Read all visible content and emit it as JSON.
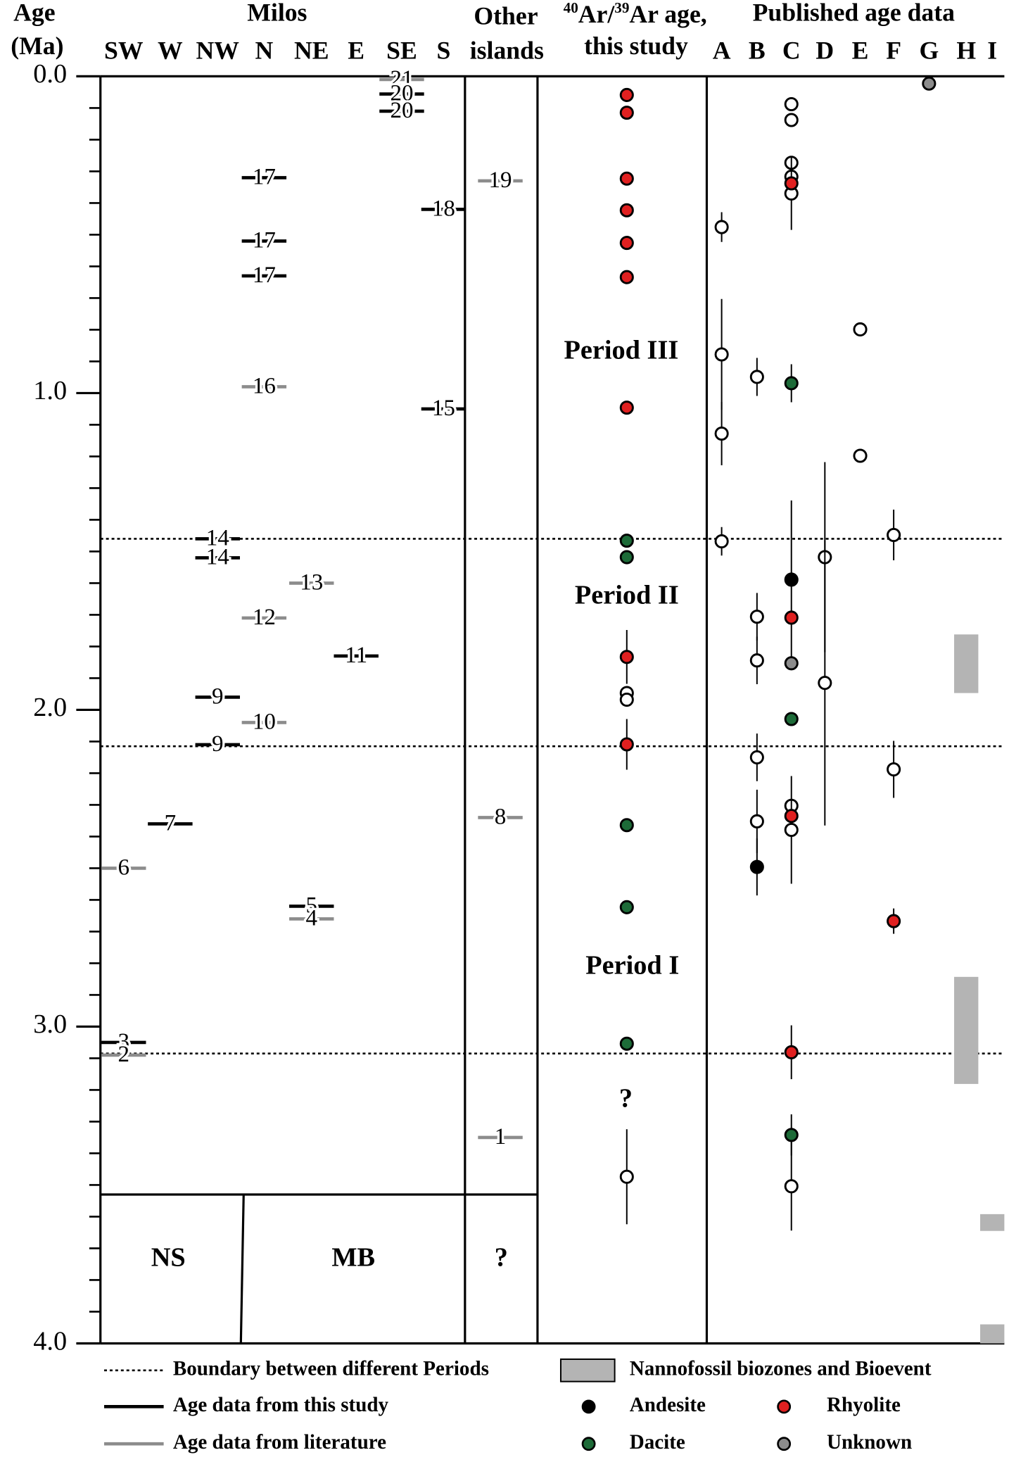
{
  "chart_data": {
    "type": "age-column-chart",
    "ylabel": [
      "Age",
      "(Ma)"
    ],
    "ylim": [
      0,
      4.0
    ],
    "yticks": [
      {
        "value": 0,
        "label": "0.0"
      },
      {
        "value": 1,
        "label": "1.0"
      },
      {
        "value": 2,
        "label": "2.0"
      },
      {
        "value": 3,
        "label": "3.0"
      },
      {
        "value": 4,
        "label": "4.0"
      }
    ],
    "minor_yticks": [
      0.1,
      0.2,
      0.3,
      0.4,
      0.5,
      0.6,
      0.7,
      0.8,
      0.9,
      1.1,
      1.2,
      1.3,
      1.4,
      1.5,
      1.6,
      1.7,
      1.8,
      1.9,
      2.1,
      2.2,
      2.3,
      2.4,
      2.5,
      2.6,
      2.7,
      2.8,
      2.9,
      3.1,
      3.2,
      3.3,
      3.4,
      3.5,
      3.6,
      3.7,
      3.8,
      3.9
    ],
    "milos_title": "Milos",
    "milos_columns": [
      "SW",
      "W",
      "NW",
      "N",
      "NE",
      "E",
      "SE",
      "S"
    ],
    "other_islands_title": [
      "Other",
      "islands"
    ],
    "study_title": {
      "sup1": "40",
      "text1": "Ar/",
      "sup2": "39",
      "text2": "Ar age,",
      "line2": "this study"
    },
    "published_title": "Published age data",
    "published_columns": [
      "A",
      "B",
      "C",
      "D",
      "E",
      "F",
      "G",
      "H",
      "I"
    ],
    "milos_bars": [
      {
        "column": "SE",
        "age": 0.01,
        "label": "21",
        "color": "#8c8c8c"
      },
      {
        "column": "SE",
        "age": 0.056,
        "label": "20",
        "color": "#000000"
      },
      {
        "column": "SE",
        "age": 0.11,
        "label": "20",
        "color": "#000000"
      },
      {
        "column": "N",
        "age": 0.32,
        "label": "17",
        "color": "#000000"
      },
      {
        "column": "S",
        "age": 0.42,
        "label": "18",
        "color": "#000000"
      },
      {
        "column": "N",
        "age": 0.52,
        "label": "17",
        "color": "#000000"
      },
      {
        "column": "N",
        "age": 0.63,
        "label": "17",
        "color": "#000000"
      },
      {
        "column": "N",
        "age": 0.98,
        "label": "16",
        "color": "#8c8c8c"
      },
      {
        "column": "S",
        "age": 1.05,
        "label": "15",
        "color": "#000000"
      },
      {
        "column": "NW",
        "age": 1.46,
        "label": "14",
        "color": "#000000"
      },
      {
        "column": "NW",
        "age": 1.52,
        "label": "14",
        "color": "#000000"
      },
      {
        "column": "NE",
        "age": 1.6,
        "label": "13",
        "color": "#8c8c8c"
      },
      {
        "column": "N",
        "age": 1.71,
        "label": "12",
        "color": "#8c8c8c"
      },
      {
        "column": "E",
        "age": 1.83,
        "label": "11",
        "color": "#000000"
      },
      {
        "column": "NW",
        "age": 1.96,
        "label": "9",
        "color": "#000000"
      },
      {
        "column": "N",
        "age": 2.04,
        "label": "10",
        "color": "#8c8c8c"
      },
      {
        "column": "NW",
        "age": 2.11,
        "label": "9",
        "color": "#000000"
      },
      {
        "column": "W",
        "age": 2.36,
        "label": "7",
        "color": "#000000"
      },
      {
        "column": "SW",
        "age": 2.5,
        "label": "6",
        "color": "#8c8c8c"
      },
      {
        "column": "NE",
        "age": 2.62,
        "label": "5",
        "color": "#000000"
      },
      {
        "column": "NE",
        "age": 2.66,
        "label": "4",
        "color": "#8c8c8c"
      },
      {
        "column": "SW",
        "age": 3.05,
        "label": "3",
        "color": "#000000"
      },
      {
        "column": "SW",
        "age": 3.09,
        "label": "2",
        "color": "#8c8c8c"
      }
    ],
    "other_islands_bars": [
      {
        "age": 0.33,
        "label": "19",
        "color": "#8c8c8c"
      },
      {
        "age": 2.34,
        "label": "8",
        "color": "#8c8c8c"
      },
      {
        "age": 3.35,
        "label": "1",
        "color": "#8c8c8c"
      }
    ],
    "study_points": [
      {
        "age": 0.059,
        "err": null,
        "color": "#e02020"
      },
      {
        "age": 0.115,
        "err": null,
        "color": "#e02020"
      },
      {
        "age": 0.323,
        "err": null,
        "color": "#e02020"
      },
      {
        "age": 0.423,
        "err": null,
        "color": "#e02020"
      },
      {
        "age": 0.526,
        "err": null,
        "color": "#e02020"
      },
      {
        "age": 0.634,
        "err": null,
        "color": "#e02020"
      },
      {
        "age": 1.046,
        "err": null,
        "color": "#e02020"
      },
      {
        "age": 1.466,
        "err": null,
        "color": "#1d6b38"
      },
      {
        "age": 1.518,
        "err": null,
        "color": "#1d6b38"
      },
      {
        "age": 1.833,
        "err": 0.085,
        "color": "#e02020"
      },
      {
        "age": 1.947,
        "err": null,
        "color": "#ffffff"
      },
      {
        "age": 1.968,
        "err": null,
        "color": "#ffffff"
      },
      {
        "age": 2.109,
        "err": 0.08,
        "color": "#e02020"
      },
      {
        "age": 2.364,
        "err": null,
        "color": "#1d6b38"
      },
      {
        "age": 2.623,
        "err": null,
        "color": "#1d6b38"
      },
      {
        "age": 3.054,
        "err": null,
        "color": "#1d6b38"
      },
      {
        "age": 3.474,
        "err": 0.15,
        "color": "#ffffff"
      }
    ],
    "published_points": [
      {
        "column": "A",
        "age": 0.476,
        "err": 0.047,
        "color": "#ffffff"
      },
      {
        "column": "A",
        "age": 0.878,
        "err": 0.175,
        "color": "#ffffff"
      },
      {
        "column": "A",
        "age": 1.128,
        "err": 0.1,
        "color": "#ffffff"
      },
      {
        "column": "A",
        "age": 1.468,
        "err": 0.045,
        "color": "#ffffff"
      },
      {
        "column": "B",
        "age": 0.949,
        "err": 0.06,
        "color": "#ffffff"
      },
      {
        "column": "B",
        "age": 1.706,
        "err": 0.075,
        "color": "#ffffff"
      },
      {
        "column": "B",
        "age": 1.844,
        "err": 0.075,
        "color": "#ffffff"
      },
      {
        "column": "B",
        "age": 2.15,
        "err": 0.075,
        "color": "#ffffff"
      },
      {
        "column": "B",
        "age": 2.352,
        "err": 0.1,
        "color": "#ffffff"
      },
      {
        "column": "B",
        "age": 2.496,
        "err": 0.09,
        "color": "#000000"
      },
      {
        "column": "C",
        "age": 0.088,
        "err": null,
        "color": "#ffffff"
      },
      {
        "column": "C",
        "age": 0.138,
        "err": null,
        "color": "#ffffff"
      },
      {
        "column": "C",
        "age": 0.273,
        "err": null,
        "color": "#ffffff"
      },
      {
        "column": "C",
        "age": 0.317,
        "err": null,
        "color": "#ffffff"
      },
      {
        "column": "C",
        "age": 0.37,
        "err": 0.115,
        "color": "#ffffff"
      },
      {
        "column": "C",
        "age": 0.338,
        "err": null,
        "color": "#e02020"
      },
      {
        "column": "C",
        "age": 0.969,
        "err": 0.06,
        "color": "#1d6b38"
      },
      {
        "column": "C",
        "age": 1.589,
        "err": 0.25,
        "color": "#000000"
      },
      {
        "column": "C",
        "age": 1.709,
        "err": null,
        "color": "#e02020"
      },
      {
        "column": "C",
        "age": 1.853,
        "err": null,
        "color": "#8c8c8c"
      },
      {
        "column": "C",
        "age": 2.029,
        "err": null,
        "color": "#1d6b38"
      },
      {
        "column": "C",
        "age": 2.303,
        "err": null,
        "color": "#ffffff"
      },
      {
        "column": "C",
        "age": 2.379,
        "err": 0.17,
        "color": "#ffffff"
      },
      {
        "column": "C",
        "age": 2.335,
        "err": null,
        "color": "#e02020"
      },
      {
        "column": "C",
        "age": 3.081,
        "err": 0.085,
        "color": "#e02020"
      },
      {
        "column": "C",
        "age": 3.342,
        "err": 0.065,
        "color": "#1d6b38"
      },
      {
        "column": "C",
        "age": 3.504,
        "err": 0.14,
        "color": "#ffffff"
      },
      {
        "column": "D",
        "age": 1.518,
        "err": 0.3,
        "color": "#ffffff"
      },
      {
        "column": "D",
        "age": 1.915,
        "err": 0.45,
        "color": "#ffffff"
      },
      {
        "column": "E",
        "age": 0.799,
        "err": null,
        "color": "#ffffff"
      },
      {
        "column": "E",
        "age": 1.198,
        "err": null,
        "color": "#ffffff"
      },
      {
        "column": "F",
        "age": 1.448,
        "err": 0.08,
        "color": "#ffffff"
      },
      {
        "column": "F",
        "age": 2.188,
        "err": 0.09,
        "color": "#ffffff"
      },
      {
        "column": "F",
        "age": 2.667,
        "err": 0.04,
        "color": "#e02020"
      },
      {
        "column": "G",
        "age": 0.023,
        "err": null,
        "color": "#8c8c8c"
      }
    ],
    "biozones": [
      {
        "column": "H",
        "range": [
          1.762,
          1.947
        ],
        "color": "#b4b4b4"
      },
      {
        "column": "H",
        "range": [
          2.843,
          3.181
        ],
        "color": "#b4b4b4"
      },
      {
        "column": "I",
        "range": [
          3.592,
          3.645
        ],
        "color": "#b4b4b4"
      },
      {
        "column": "I",
        "range": [
          3.94,
          4.0
        ],
        "color": "#b4b4b4"
      }
    ],
    "period_boundaries": [
      1.46,
      2.115,
      3.085
    ],
    "periods": [
      "Period III",
      "Period II",
      "Period I"
    ],
    "study_unknown": "?",
    "units": [
      "NS",
      "MB",
      "?"
    ],
    "legend": [
      {
        "label": "Boundary between different Periods",
        "symbol": "dotted",
        "color": "#000000"
      },
      {
        "label": "Age data from this study",
        "symbol": "line",
        "color": "#000000"
      },
      {
        "label": "Age data from literature",
        "symbol": "line",
        "color": "#8c8c8c"
      },
      {
        "label": "Nannofossil biozones and Bioevent",
        "symbol": "rect",
        "color": "#b4b4b4"
      },
      {
        "label": "Andesite",
        "symbol": "dot",
        "color": "#000000"
      },
      {
        "label": "Rhyolite",
        "symbol": "dot",
        "color": "#e02020"
      },
      {
        "label": "Dacite",
        "symbol": "dot",
        "color": "#1d6b38"
      },
      {
        "label": "Unknown",
        "symbol": "dot",
        "color": "#8c8c8c"
      }
    ]
  }
}
